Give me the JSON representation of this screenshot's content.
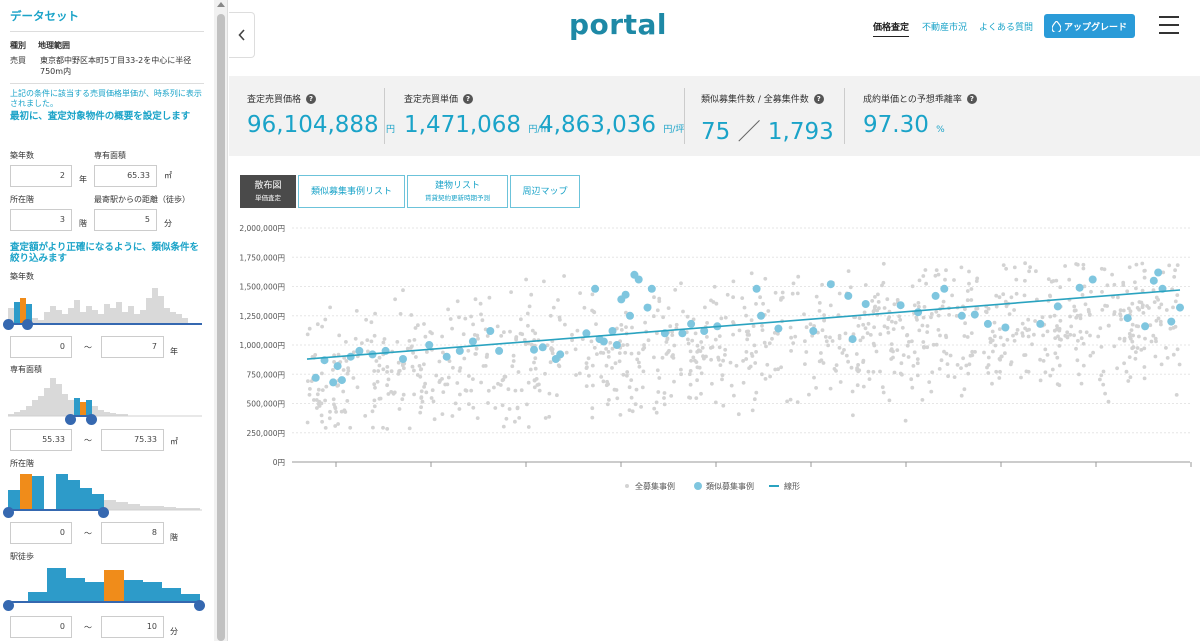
{
  "sidebar": {
    "title": "データセット",
    "head_type": "種別",
    "head_area": "地理範囲",
    "row_type": "売買",
    "row_area": "東京都中野区本町5丁目33-2を中心に半径750m内",
    "note": "上記の条件に該当する売買価格単価が、時系列に表示されました。",
    "step1": "最初に、査定対象物件の概要を設定します",
    "age_label": "築年数",
    "age_value": "2",
    "age_unit": "年",
    "area_label": "専有面積",
    "area_value": "65.33",
    "area_unit": "㎡",
    "floor_label": "所在階",
    "floor_value": "3",
    "floor_unit": "階",
    "walk_label": "最寄駅からの距離（徒歩）",
    "walk_value": "5",
    "walk_unit": "分",
    "step2": "査定額がより正確になるように、類似条件を絞り込みます",
    "filters": {
      "age": {
        "label": "築年数",
        "min": "0",
        "max": "7",
        "unit": "年",
        "range_low": 0.0,
        "range_high": 0.11
      },
      "area": {
        "label": "専有面積",
        "min": "55.33",
        "max": "75.33",
        "unit": "㎡",
        "range_low": 0.31,
        "range_high": 0.43
      },
      "floor": {
        "label": "所在階",
        "min": "0",
        "max": "8",
        "unit": "階",
        "range_low": 0.0,
        "range_high": 0.5
      },
      "walk": {
        "label": "駅徒歩",
        "min": "0",
        "max": "10",
        "unit": "分",
        "range_low": 0.0,
        "range_high": 1.0
      }
    },
    "tilde": "〜"
  },
  "header": {
    "logo": "portal",
    "nav_price": "価格査定",
    "nav_market": "不動産市況",
    "nav_faq": "よくある質問",
    "upgrade": "アップグレード",
    "upgrade_icon": "drop-icon",
    "menu_icon": "hamburger-icon",
    "collapse_icon": "chevron-left-icon"
  },
  "stats": {
    "price_label": "査定売買価格",
    "price_value": "96,104,888",
    "price_unit": "円",
    "unit_label": "査定売買単価",
    "unit_value1": "1,471,068",
    "unit_unit1": "円/㎡",
    "unit_value2": "4,863,036",
    "unit_unit2": "円/坪",
    "count_label": "類似募集件数 / 全募集件数",
    "count_similar": "75",
    "count_slash": "／",
    "count_all": "1,793",
    "dev_label": "成約単価との予想乖離率",
    "dev_value": "97.30",
    "dev_unit": "%",
    "help": "?"
  },
  "tabs": {
    "scatter": "散布図",
    "scatter_sub": "単価査定",
    "list": "類似募集事例リスト",
    "building": "建物リスト",
    "building_sub": "賃貸契約更新時期予測",
    "map": "周辺マップ"
  },
  "chart_data": {
    "type": "scatter",
    "y_ticks": [
      "2,000,000円",
      "1,750,000円",
      "1,500,000円",
      "1,250,000円",
      "1,000,000円",
      "750,000円",
      "500,000円",
      "250,000円",
      "0円"
    ],
    "ylim": [
      0,
      2000000
    ],
    "legend": {
      "all": "全募集事例",
      "similar": "類似募集事例",
      "linear": "線形"
    },
    "colors": {
      "all": "#d3d3d3",
      "similar": "#7fc6df",
      "linear": "#2aa3c0"
    },
    "trend": {
      "start": 880000,
      "end": 1470000
    },
    "series": [
      {
        "name": "類似募集事例",
        "points": [
          [
            0.01,
            720000
          ],
          [
            0.02,
            870000
          ],
          [
            0.03,
            680000
          ],
          [
            0.035,
            820000
          ],
          [
            0.04,
            700000
          ],
          [
            0.05,
            900000
          ],
          [
            0.06,
            950000
          ],
          [
            0.075,
            920000
          ],
          [
            0.09,
            950000
          ],
          [
            0.11,
            880000
          ],
          [
            0.14,
            1000000
          ],
          [
            0.16,
            900000
          ],
          [
            0.175,
            950000
          ],
          [
            0.19,
            1030000
          ],
          [
            0.21,
            1120000
          ],
          [
            0.22,
            950000
          ],
          [
            0.26,
            960000
          ],
          [
            0.27,
            980000
          ],
          [
            0.285,
            880000
          ],
          [
            0.29,
            920000
          ],
          [
            0.32,
            1100000
          ],
          [
            0.33,
            1480000
          ],
          [
            0.335,
            1050000
          ],
          [
            0.34,
            1030000
          ],
          [
            0.35,
            1120000
          ],
          [
            0.355,
            1000000
          ],
          [
            0.36,
            1390000
          ],
          [
            0.365,
            1430000
          ],
          [
            0.37,
            1250000
          ],
          [
            0.375,
            1600000
          ],
          [
            0.38,
            1560000
          ],
          [
            0.39,
            1320000
          ],
          [
            0.395,
            1480000
          ],
          [
            0.41,
            1100000
          ],
          [
            0.43,
            1100000
          ],
          [
            0.44,
            1180000
          ],
          [
            0.455,
            1120000
          ],
          [
            0.47,
            1160000
          ],
          [
            0.515,
            1480000
          ],
          [
            0.52,
            1250000
          ],
          [
            0.54,
            1140000
          ],
          [
            0.58,
            1120000
          ],
          [
            0.6,
            1520000
          ],
          [
            0.62,
            1420000
          ],
          [
            0.625,
            1050000
          ],
          [
            0.64,
            1350000
          ],
          [
            0.68,
            1340000
          ],
          [
            0.7,
            1280000
          ],
          [
            0.72,
            1420000
          ],
          [
            0.73,
            1480000
          ],
          [
            0.75,
            1250000
          ],
          [
            0.765,
            1260000
          ],
          [
            0.78,
            1180000
          ],
          [
            0.8,
            1150000
          ],
          [
            0.84,
            1180000
          ],
          [
            0.86,
            1330000
          ],
          [
            0.885,
            1490000
          ],
          [
            0.9,
            1560000
          ],
          [
            0.94,
            1230000
          ],
          [
            0.96,
            1160000
          ],
          [
            0.97,
            1550000
          ],
          [
            0.975,
            1620000
          ],
          [
            0.98,
            1480000
          ],
          [
            0.99,
            1200000
          ],
          [
            1.0,
            1320000
          ]
        ]
      },
      {
        "name": "全募集事例",
        "points": []
      }
    ]
  }
}
